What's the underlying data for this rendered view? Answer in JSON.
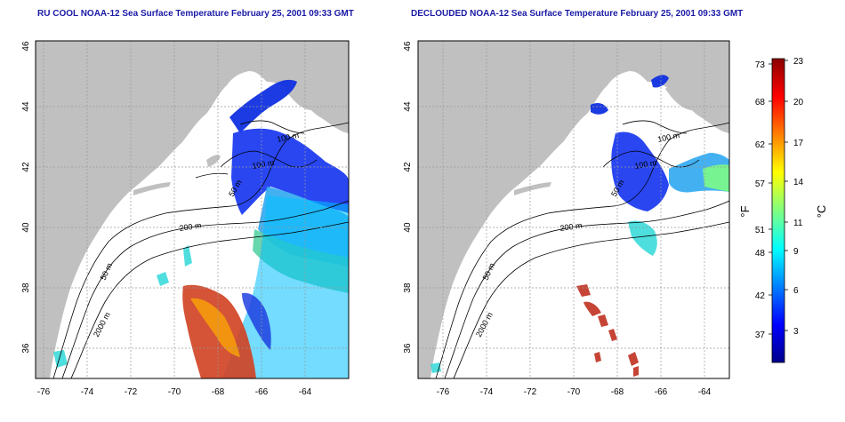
{
  "maps": [
    {
      "title": "RU COOL NOAA-12 Sea Surface Temperature February 25, 2001 09:33 GMT",
      "variant": "raw",
      "contour_labels": [
        "100 m",
        "100 m",
        "50 m",
        "200 m",
        "50 m",
        "2000 m"
      ]
    },
    {
      "title": "DECLOUDED NOAA-12 Sea Surface Temperature February 25, 2001 09:33 GMT",
      "variant": "declouded",
      "contour_labels": [
        "100 m",
        "100 m",
        "50 m",
        "200 m",
        "50 m",
        "2000 m"
      ]
    }
  ],
  "axes": {
    "x_ticks": [
      "-76",
      "-74",
      "-72",
      "-70",
      "-68",
      "-66",
      "-64"
    ],
    "y_ticks": [
      "36",
      "38",
      "40",
      "42",
      "44",
      "46"
    ]
  },
  "colorbar": {
    "left_unit": "°F",
    "right_unit": "°C",
    "fahrenheit_ticks": [
      "73",
      "68",
      "62",
      "57",
      "51",
      "48",
      "42",
      "37"
    ],
    "celsius_ticks": [
      "23",
      "20",
      "17",
      "14",
      "11",
      "9",
      "6",
      "3"
    ],
    "colors": [
      "#00008b",
      "#0000ff",
      "#0080ff",
      "#00ffff",
      "#80ff80",
      "#ffff00",
      "#ff8000",
      "#ff0000",
      "#8b0000"
    ]
  },
  "colors": {
    "title": "#1a1aa6",
    "land": "#c0c0c0",
    "ocean": "#ffffff",
    "frame": "#000000"
  }
}
